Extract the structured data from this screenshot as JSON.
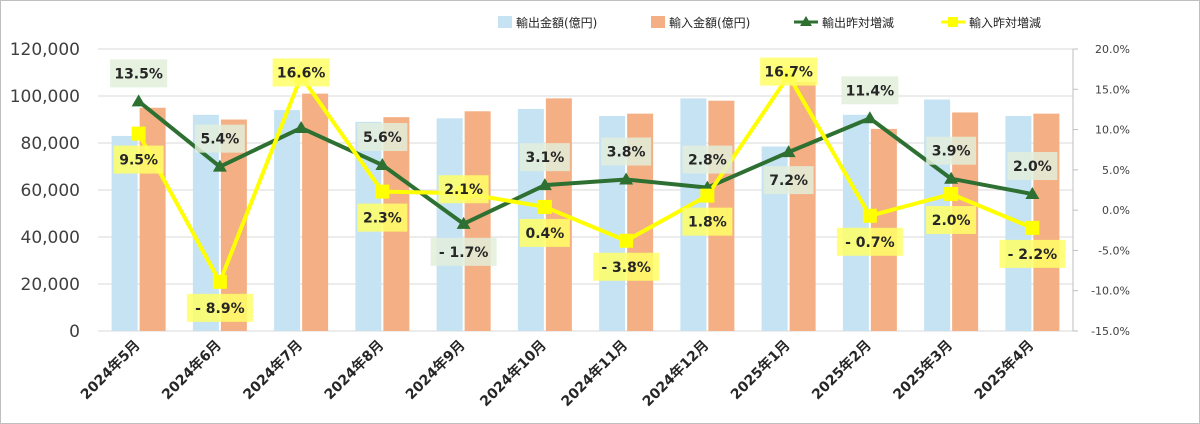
{
  "chart_data": {
    "type": "bar",
    "categories": [
      "2024年5月",
      "2024年6月",
      "2024年7月",
      "2024年8月",
      "2024年9月",
      "2024年10月",
      "2024年11月",
      "2024年12月",
      "2025年1月",
      "2025年2月",
      "2025年3月",
      "2025年4月"
    ],
    "series": [
      {
        "name": "輸出金額(億円)",
        "type": "bar",
        "axis": "left",
        "color": "#c5e3f3",
        "values": [
          83000,
          92000,
          94000,
          89000,
          90500,
          94500,
          91500,
          99000,
          78500,
          92000,
          98500,
          91500
        ]
      },
      {
        "name": "輸入金額(億円)",
        "type": "bar",
        "axis": "left",
        "color": "#f4b084",
        "values": [
          95000,
          90000,
          101000,
          91000,
          93500,
          99000,
          92500,
          98000,
          106000,
          86000,
          93000,
          92500
        ]
      },
      {
        "name": "輸出昨対増減",
        "type": "line",
        "axis": "right",
        "color": "#2e7031",
        "marker": "triangle",
        "values": [
          13.5,
          5.4,
          10.2,
          5.6,
          -1.7,
          3.1,
          3.8,
          2.8,
          7.2,
          11.4,
          3.9,
          2.0
        ],
        "labels": [
          "13.5%",
          "5.4%",
          "",
          "5.6%",
          "- 1.7%",
          "3.1%",
          "3.8%",
          "2.8%",
          "7.2%",
          "11.4%",
          "3.9%",
          "2.0%"
        ],
        "label_bg": "#e2efda"
      },
      {
        "name": "輸入昨対増減",
        "type": "line",
        "axis": "right",
        "color": "#ffff00",
        "marker": "square",
        "values": [
          9.5,
          -8.9,
          16.6,
          2.3,
          2.1,
          0.4,
          -3.8,
          1.8,
          16.7,
          -0.7,
          2.0,
          -2.2
        ],
        "labels": [
          "9.5%",
          "- 8.9%",
          "16.6%",
          "2.3%",
          "2.1%",
          "0.4%",
          "- 3.8%",
          "1.8%",
          "16.7%",
          "- 0.7%",
          "2.0%",
          "- 2.2%"
        ],
        "label_bg": "#ffff66"
      }
    ],
    "y_left": {
      "min": 0,
      "max": 120000,
      "step": 20000,
      "ticks": [
        "0",
        "20,000",
        "40,000",
        "60,000",
        "80,000",
        "100,000",
        "120,000"
      ]
    },
    "y_right": {
      "min": -15,
      "max": 20,
      "step": 5,
      "ticks": [
        "-15.0%",
        "-10.0%",
        "-5.0%",
        "0.0%",
        "5.0%",
        "10.0%",
        "15.0%",
        "20.0%"
      ]
    },
    "grid": true,
    "legend_position": "top"
  }
}
